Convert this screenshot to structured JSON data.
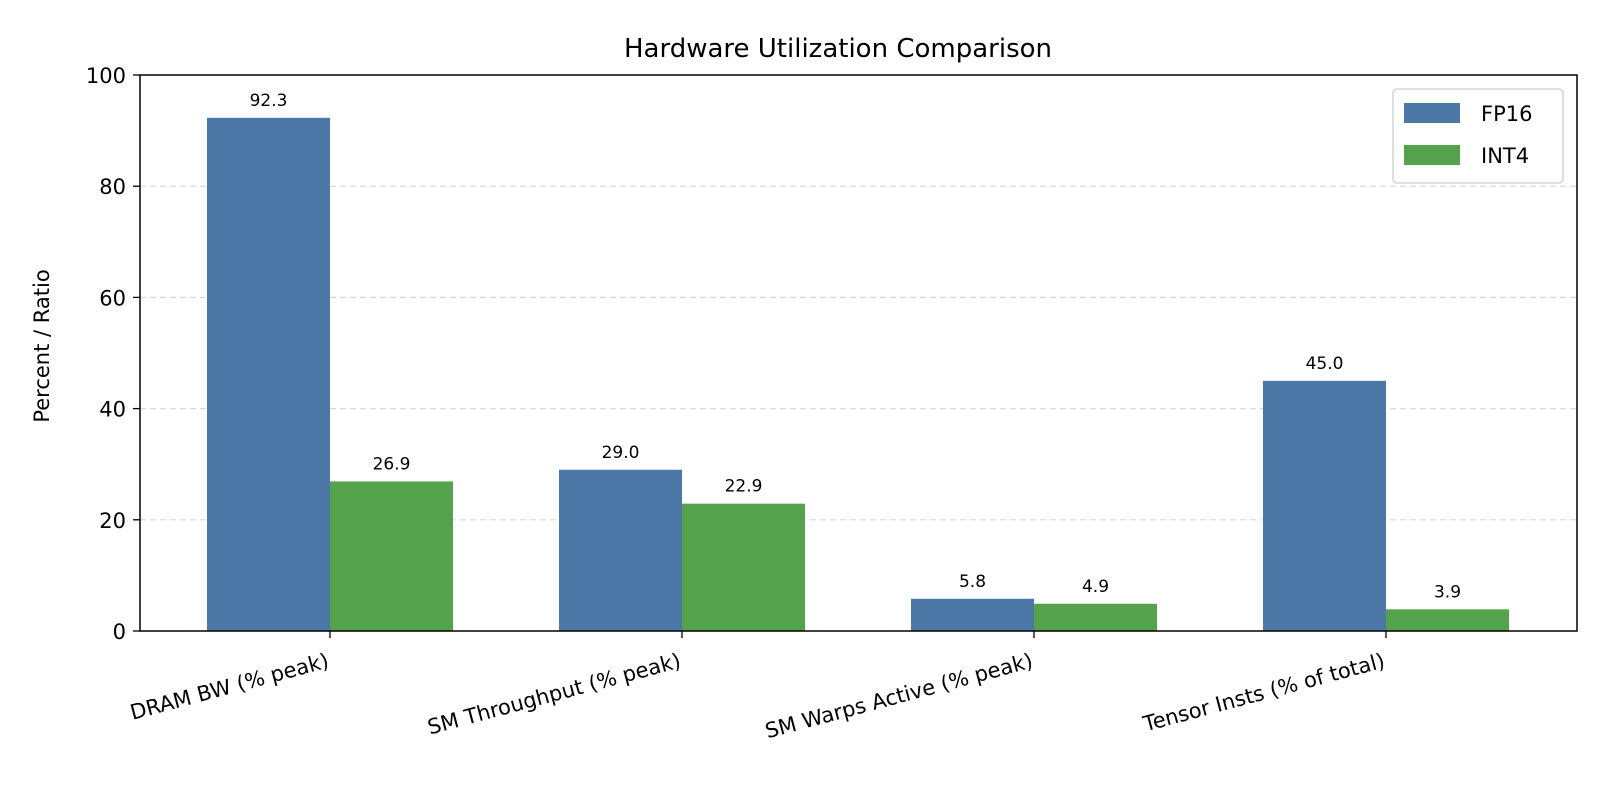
{
  "chart_data": {
    "type": "bar",
    "title": "Hardware Utilization Comparison",
    "xlabel": "",
    "ylabel": "Percent / Ratio",
    "categories": [
      "DRAM BW (% peak)",
      "SM Throughput (% peak)",
      "SM Warps Active (% peak)",
      "Tensor Insts (% of total)"
    ],
    "series": [
      {
        "name": "FP16",
        "color": "#4c78a8",
        "values": [
          92.3,
          29.0,
          5.8,
          45.0
        ]
      },
      {
        "name": "INT4",
        "color": "#54a24b",
        "values": [
          26.9,
          22.9,
          4.9,
          3.9
        ]
      }
    ],
    "ylim": [
      0,
      100
    ],
    "yticks": [
      0,
      20,
      40,
      60,
      80,
      100
    ],
    "grid": "y-dashed",
    "legend": "top-right"
  }
}
